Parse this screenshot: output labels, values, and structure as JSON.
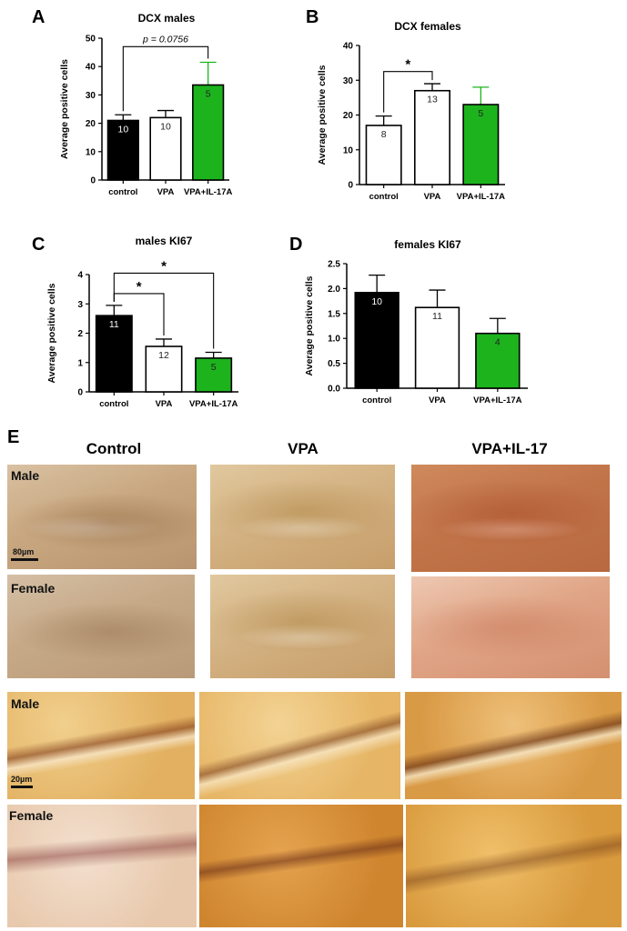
{
  "panels": {
    "A": "A",
    "B": "B",
    "C": "C",
    "D": "D",
    "E": "E"
  },
  "chart_data": [
    {
      "panel": "A",
      "type": "bar",
      "title": "DCX males",
      "xlabel": "",
      "ylabel": "Average positive cells",
      "ylim": [
        0,
        50
      ],
      "yticks": [
        "0",
        "10",
        "20",
        "30",
        "40",
        "50"
      ],
      "categories": [
        "control",
        "VPA",
        "VPA+IL-17A"
      ],
      "values": [
        21,
        22,
        33.5
      ],
      "errors": [
        2,
        2.5,
        8
      ],
      "n_labels": [
        "10",
        "10",
        "5"
      ],
      "fill_colors": [
        "#000000",
        "#ffffff",
        "#1db31d"
      ],
      "error_colors": [
        "#000000",
        "#000000",
        "#1db31d"
      ],
      "annotation": {
        "text": "p = 0.0756",
        "from": 0,
        "to": 2,
        "at": 47
      }
    },
    {
      "panel": "B",
      "type": "bar",
      "title": "DCX females",
      "xlabel": "",
      "ylabel": "Average positive cells",
      "ylim": [
        0,
        40
      ],
      "yticks": [
        "0",
        "10",
        "20",
        "30",
        "40"
      ],
      "categories": [
        "control",
        "VPA",
        "VPA+IL-17A"
      ],
      "values": [
        17,
        27,
        23
      ],
      "errors": [
        2.7,
        2,
        5
      ],
      "n_labels": [
        "8",
        "13",
        "5"
      ],
      "fill_colors": [
        "#ffffff",
        "#ffffff",
        "#1db31d"
      ],
      "error_colors": [
        "#000000",
        "#000000",
        "#1db31d"
      ],
      "annotation": {
        "text": "*",
        "from": 0,
        "to": 1,
        "at": 32.5
      }
    },
    {
      "panel": "C",
      "type": "bar",
      "title": "males KI67",
      "xlabel": "",
      "ylabel": "Average positive cells",
      "ylim": [
        0,
        4
      ],
      "yticks": [
        "0",
        "1",
        "2",
        "3",
        "4"
      ],
      "categories": [
        "control",
        "VPA",
        "VPA+IL-17A"
      ],
      "values": [
        2.6,
        1.55,
        1.15
      ],
      "errors": [
        0.35,
        0.25,
        0.2
      ],
      "n_labels": [
        "11",
        "12",
        "5"
      ],
      "fill_colors": [
        "#000000",
        "#ffffff",
        "#1db31d"
      ],
      "error_colors": [
        "#000000",
        "#000000",
        "#000000"
      ],
      "annotations": [
        {
          "text": "*",
          "from": 0,
          "to": 1,
          "at": 3.35
        },
        {
          "text": "*",
          "from": 0,
          "to": 2,
          "at": 4.05
        }
      ]
    },
    {
      "panel": "D",
      "type": "bar",
      "title": "females KI67",
      "xlabel": "",
      "ylabel": "Average positive cells",
      "ylim": [
        0,
        2.5
      ],
      "yticks": [
        "0.0",
        "0.5",
        "1.0",
        "1.5",
        "2.0",
        "2.5"
      ],
      "categories": [
        "control",
        "VPA",
        "VPA+IL-17A"
      ],
      "values": [
        1.92,
        1.62,
        1.1
      ],
      "errors": [
        0.35,
        0.35,
        0.3
      ],
      "n_labels": [
        "10",
        "11",
        "4"
      ],
      "fill_colors": [
        "#000000",
        "#ffffff",
        "#1db31d"
      ],
      "error_colors": [
        "#000000",
        "#000000",
        "#000000"
      ]
    }
  ],
  "micrographs": {
    "columns": [
      "Control",
      "VPA",
      "VPA+IL-17"
    ],
    "low_mag": {
      "row_labels": [
        "Male",
        "Female"
      ],
      "scale_label": "80µm"
    },
    "high_mag": {
      "row_labels": [
        "Male",
        "Female"
      ],
      "scale_label": "20µm"
    }
  }
}
